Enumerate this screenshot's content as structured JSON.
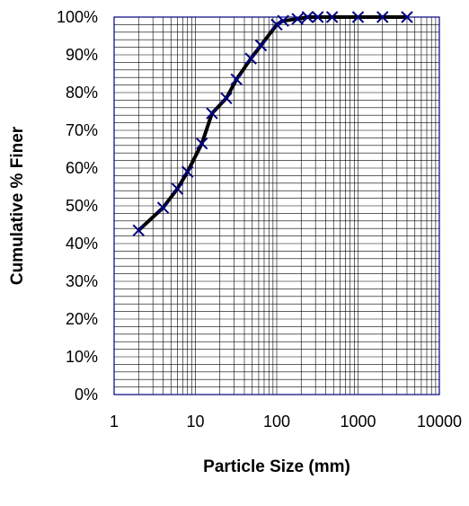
{
  "chart_data": {
    "type": "line",
    "title": "",
    "xlabel": "Particle Size (mm)",
    "ylabel": "Cumulative % Finer",
    "x_scale": "log",
    "xlim": [
      1,
      10000
    ],
    "ylim": [
      0,
      100
    ],
    "x_ticks": [
      1,
      10,
      100,
      1000,
      10000
    ],
    "x_tick_labels": [
      "1",
      "10",
      "100",
      "1000",
      "10000"
    ],
    "y_ticks": [
      0,
      10,
      20,
      30,
      40,
      50,
      60,
      70,
      80,
      90,
      100
    ],
    "y_tick_labels": [
      "0%",
      "10%",
      "20%",
      "30%",
      "40%",
      "50%",
      "60%",
      "70%",
      "80%",
      "90%",
      "100%"
    ],
    "grid": true,
    "legend": "none",
    "colors": {
      "line": "#000000",
      "marker": "#000080",
      "grid": "#000000",
      "frame": "#000080"
    },
    "series": [
      {
        "marker": "x-mark",
        "x": [
          2,
          4,
          6,
          8,
          12,
          16,
          24,
          32,
          48,
          64,
          100,
          120,
          180,
          240,
          320,
          480,
          1000,
          2000,
          4000
        ],
        "y": [
          43.5,
          49.5,
          54.5,
          59,
          66.5,
          74.5,
          78.5,
          83.5,
          89,
          92.5,
          98,
          99,
          99.5,
          100,
          100,
          100,
          100,
          100,
          100
        ]
      }
    ]
  }
}
